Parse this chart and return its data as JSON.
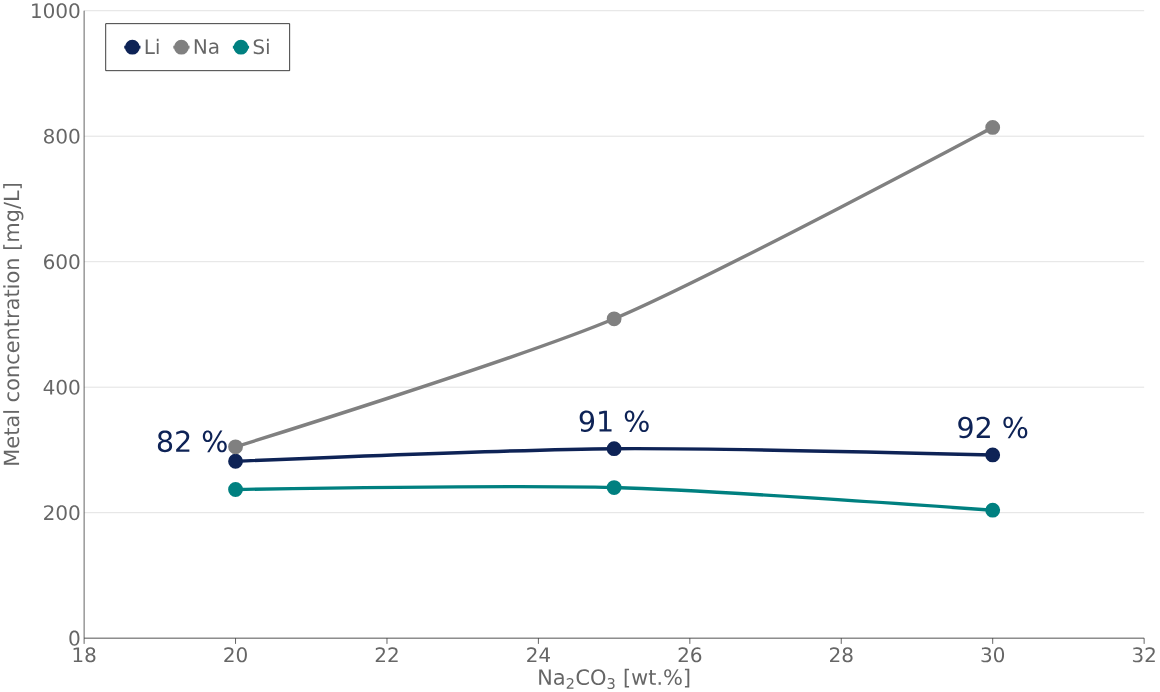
{
  "chart_data": {
    "type": "line",
    "xlabel": "Na$_{2}$CO$_{3}$ [wt.%]",
    "ylabel": "Metal concentration [mg/L]",
    "x": [
      20,
      25,
      30
    ],
    "series": [
      {
        "name": "Li",
        "color": "#0e2356",
        "values": [
          282,
          302,
          292
        ]
      },
      {
        "name": "Na",
        "color": "#808080",
        "values": [
          305,
          509,
          814
        ]
      },
      {
        "name": "Si",
        "color": "#008080",
        "values": [
          237,
          240,
          204
        ]
      }
    ],
    "xlim": [
      18,
      32
    ],
    "xticks": [
      18,
      20,
      22,
      24,
      26,
      28,
      30,
      32
    ],
    "ylim": [
      0,
      1000
    ],
    "yticks": [
      0,
      200,
      400,
      600,
      800,
      1000
    ],
    "grid": "y",
    "legend": "top left",
    "marker": "circle",
    "line_style": "solid",
    "annotations": [
      {
        "text": "82 %",
        "x": 20,
        "y": 282
      },
      {
        "text": "91 %",
        "x": 25,
        "y": 302
      },
      {
        "text": "92 %",
        "x": 30,
        "y": 292
      }
    ]
  }
}
